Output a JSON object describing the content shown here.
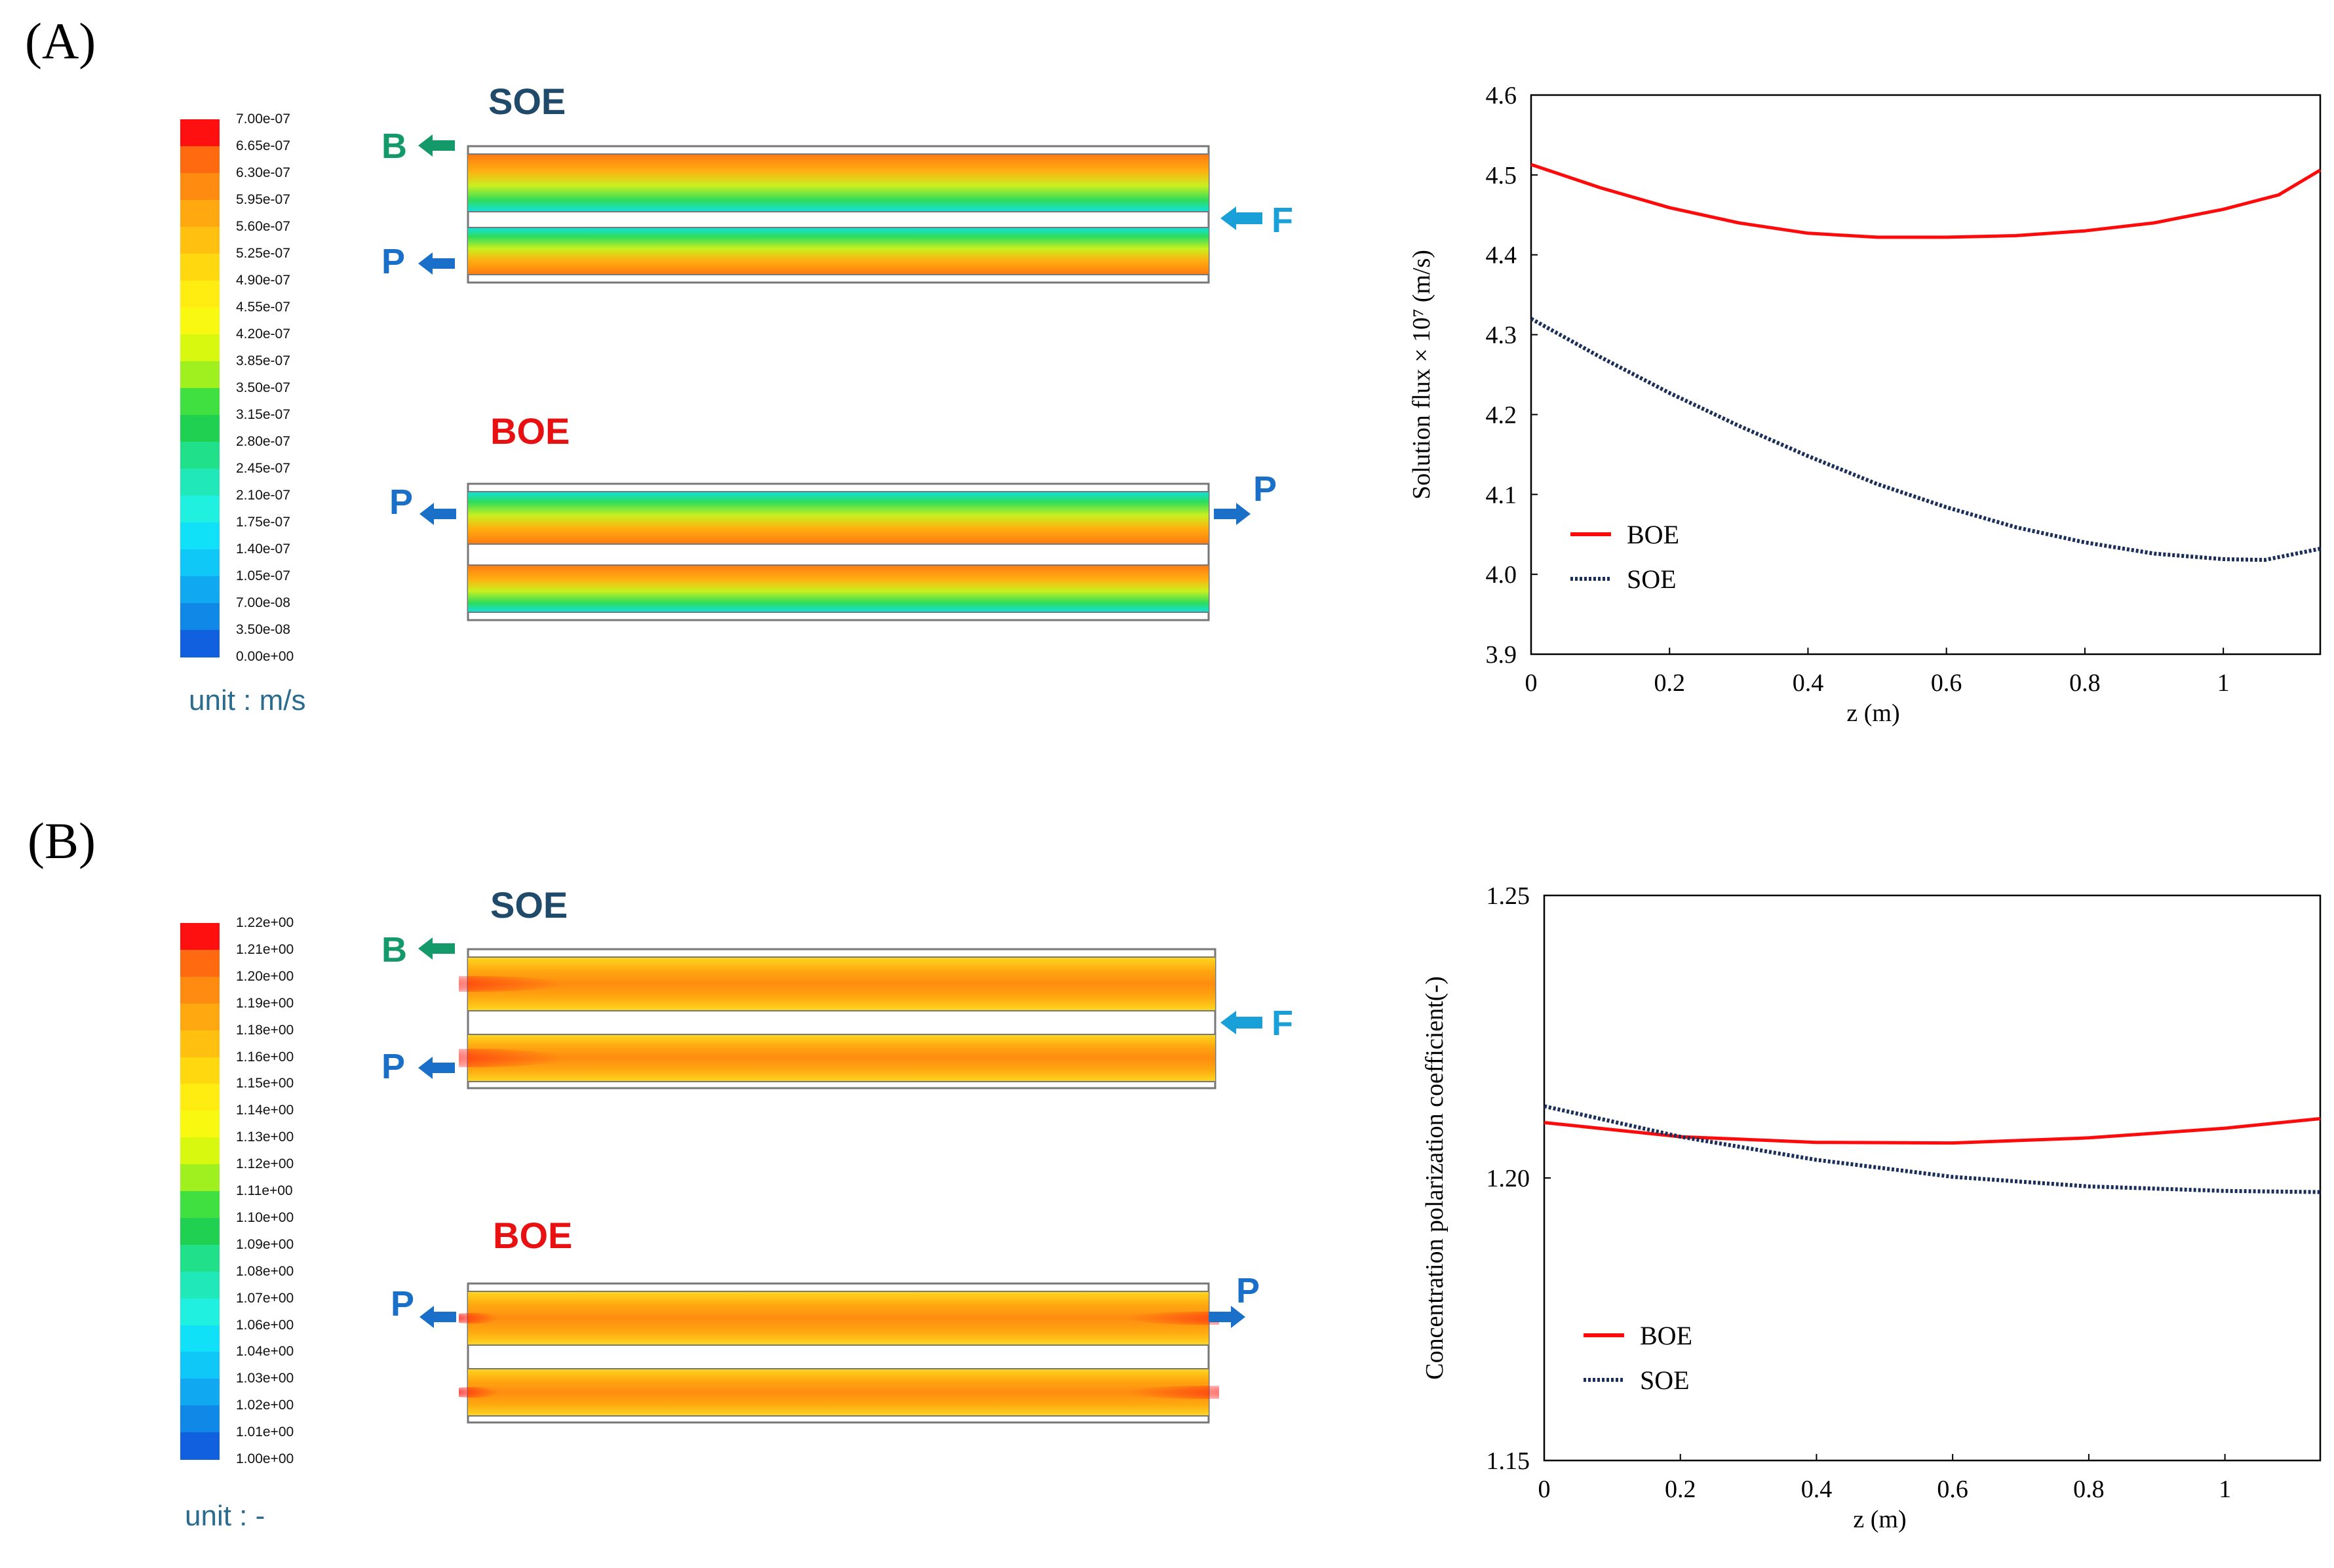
{
  "panels": [
    {
      "label": "(A)",
      "colorbar": {
        "ticks": [
          "7.00e-07",
          "6.65e-07",
          "6.30e-07",
          "5.95e-07",
          "5.60e-07",
          "5.25e-07",
          "4.90e-07",
          "4.55e-07",
          "4.20e-07",
          "3.85e-07",
          "3.50e-07",
          "3.15e-07",
          "2.80e-07",
          "2.45e-07",
          "2.10e-07",
          "1.75e-07",
          "1.40e-07",
          "1.05e-07",
          "7.00e-08",
          "3.50e-08",
          "0.00e+00"
        ],
        "colors": [
          "#ff1010",
          "#ff6a10",
          "#ff8c10",
          "#ffa810",
          "#ffc010",
          "#ffd810",
          "#ffec10",
          "#f8f810",
          "#d8f810",
          "#a0f020",
          "#40e040",
          "#20d050",
          "#20e08a",
          "#20e8b8",
          "#20f0e0",
          "#10e0f8",
          "#10c8f8",
          "#10a8f0",
          "#1088e8",
          "#1060e0",
          "#1020e8"
        ],
        "unit": "unit : m/s"
      },
      "soe": {
        "title": "SOE",
        "left_top": "B",
        "left_bottom": "P",
        "right": "F"
      },
      "boe": {
        "title": "BOE",
        "left": "P",
        "right": "P"
      }
    },
    {
      "label": "(B)",
      "colorbar": {
        "ticks": [
          "1.22e+00",
          "1.21e+00",
          "1.20e+00",
          "1.19e+00",
          "1.18e+00",
          "1.16e+00",
          "1.15e+00",
          "1.14e+00",
          "1.13e+00",
          "1.12e+00",
          "1.11e+00",
          "1.10e+00",
          "1.09e+00",
          "1.08e+00",
          "1.07e+00",
          "1.06e+00",
          "1.04e+00",
          "1.03e+00",
          "1.02e+00",
          "1.01e+00",
          "1.00e+00"
        ],
        "colors": [
          "#ff1010",
          "#ff6a10",
          "#ff8c10",
          "#ffa810",
          "#ffc010",
          "#ffd810",
          "#ffec10",
          "#f8f810",
          "#d8f810",
          "#a0f020",
          "#40e040",
          "#20d050",
          "#20e08a",
          "#20e8b8",
          "#20f0e0",
          "#10e0f8",
          "#10c8f8",
          "#10a8f0",
          "#1088e8",
          "#1060e0",
          "#1020e8"
        ],
        "unit": "unit : -"
      },
      "soe": {
        "title": "SOE",
        "left_top": "B",
        "left_bottom": "P",
        "right": "F"
      },
      "boe": {
        "title": "BOE",
        "left": "P",
        "right": "P"
      }
    }
  ],
  "colors": {
    "boe": "#ff0a0a",
    "soe": "#1a2f5a",
    "soe_title": "#1f4a6a",
    "boe_title": "#e81010",
    "port_blue": "#1a6fc8",
    "port_green": "#149a6a",
    "feed_cyan": "#1aa0d8"
  },
  "chart_data": [
    {
      "type": "line",
      "title": "",
      "xlabel": "z (m)",
      "ylabel": "Solution flux × 10⁷ (m/s)",
      "xlim": [
        0,
        1.14
      ],
      "ylim": [
        3.9,
        4.6
      ],
      "xticks": [
        "0",
        "0.2",
        "0.4",
        "0.6",
        "0.8",
        "1"
      ],
      "yticks": [
        "3.9",
        "4.0",
        "4.1",
        "4.2",
        "4.3",
        "4.4",
        "4.5",
        "4.6"
      ],
      "legend": [
        "BOE",
        "SOE"
      ],
      "series": [
        {
          "name": "BOE",
          "style": "solid",
          "x": [
            0,
            0.1,
            0.2,
            0.3,
            0.4,
            0.5,
            0.6,
            0.7,
            0.8,
            0.9,
            1.0,
            1.08,
            1.14
          ],
          "y": [
            4.513,
            4.484,
            4.459,
            4.44,
            4.427,
            4.422,
            4.422,
            4.424,
            4.43,
            4.44,
            4.457,
            4.475,
            4.506
          ]
        },
        {
          "name": "SOE",
          "style": "dotted",
          "x": [
            0,
            0.1,
            0.2,
            0.3,
            0.4,
            0.5,
            0.6,
            0.7,
            0.8,
            0.9,
            1.0,
            1.06,
            1.14
          ],
          "y": [
            4.32,
            4.272,
            4.227,
            4.186,
            4.148,
            4.113,
            4.084,
            4.059,
            4.04,
            4.026,
            4.019,
            4.018,
            4.032
          ]
        }
      ]
    },
    {
      "type": "line",
      "title": "",
      "xlabel": "z (m)",
      "ylabel": "Concentration polarization coefficient(-)",
      "xlim": [
        0,
        1.14
      ],
      "ylim": [
        1.15,
        1.25
      ],
      "xticks": [
        "0",
        "0.2",
        "0.4",
        "0.6",
        "0.8",
        "1"
      ],
      "yticks": [
        "1.15",
        "1.20",
        "1.25"
      ],
      "legend": [
        "BOE",
        "SOE"
      ],
      "series": [
        {
          "name": "BOE",
          "style": "solid",
          "x": [
            0,
            0.2,
            0.4,
            0.6,
            0.8,
            1.0,
            1.14
          ],
          "y": [
            1.2098,
            1.2073,
            1.2063,
            1.2062,
            1.2071,
            1.2088,
            1.2105
          ]
        },
        {
          "name": "SOE",
          "style": "dotted",
          "x": [
            0,
            0.2,
            0.4,
            0.6,
            0.8,
            1.0,
            1.14
          ],
          "y": [
            1.2127,
            1.2073,
            1.2032,
            1.2002,
            1.1985,
            1.1977,
            1.1975
          ]
        }
      ]
    }
  ]
}
